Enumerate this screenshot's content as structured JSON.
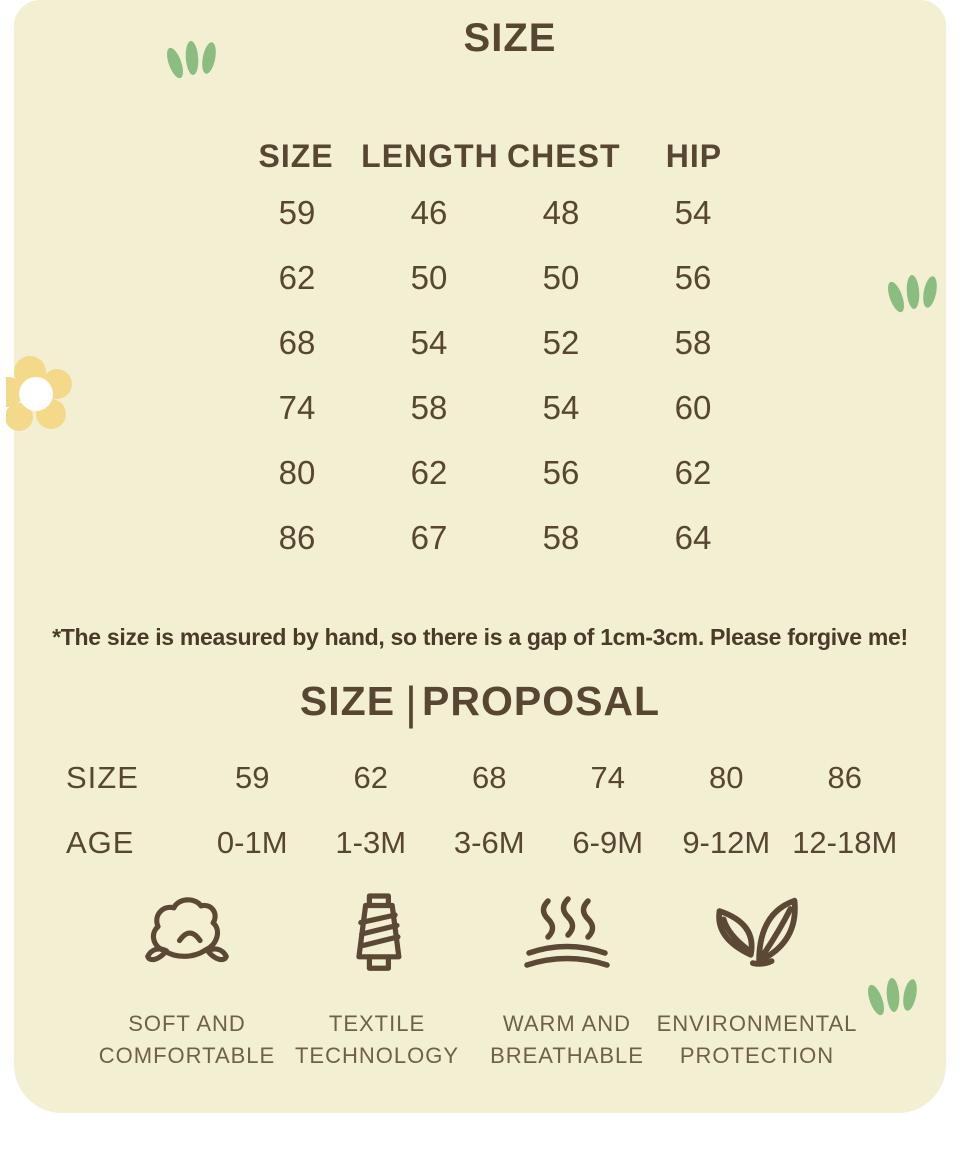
{
  "page": {
    "background_color": "#ffffff",
    "card_color": "#f3efd3",
    "text_color": "#574732",
    "label_color": "#6f604b",
    "leaf_green": "#8cbd80",
    "flower_yellow": "#f5d98b"
  },
  "title": "SIZE",
  "size_table": {
    "headers": [
      "SIZE",
      "LENGTH",
      "CHEST",
      "HIP"
    ],
    "rows": [
      [
        "59",
        "46",
        "48",
        "54"
      ],
      [
        "62",
        "50",
        "50",
        "56"
      ],
      [
        "68",
        "54",
        "52",
        "58"
      ],
      [
        "74",
        "58",
        "54",
        "60"
      ],
      [
        "80",
        "62",
        "56",
        "62"
      ],
      [
        "86",
        "67",
        "58",
        "64"
      ]
    ]
  },
  "disclaimer": "*The size is measured by hand, so there is a gap of 1cm-3cm. Please forgive me!",
  "proposal": {
    "heading_left": "SIZE",
    "heading_divider": "|",
    "heading_right": "PROPOSAL",
    "rows": [
      {
        "label": "SIZE",
        "values": [
          "59",
          "62",
          "68",
          "74",
          "80",
          "86"
        ]
      },
      {
        "label": "AGE",
        "values": [
          "0-1M",
          "1-3M",
          "3-6M",
          "6-9M",
          "9-12M",
          "12-18M"
        ]
      }
    ]
  },
  "features": [
    {
      "icon": "cotton-icon",
      "line1": "SOFT AND",
      "line2": "COMFORTABLE"
    },
    {
      "icon": "thread-spool-icon",
      "line1": "TEXTILE",
      "line2": "TECHNOLOGY"
    },
    {
      "icon": "steam-icon",
      "line1": "WARM AND",
      "line2": "BREATHABLE"
    },
    {
      "icon": "leaves-icon",
      "line1": "ENVIRONMENTAL",
      "line2": "PROTECTION"
    }
  ]
}
